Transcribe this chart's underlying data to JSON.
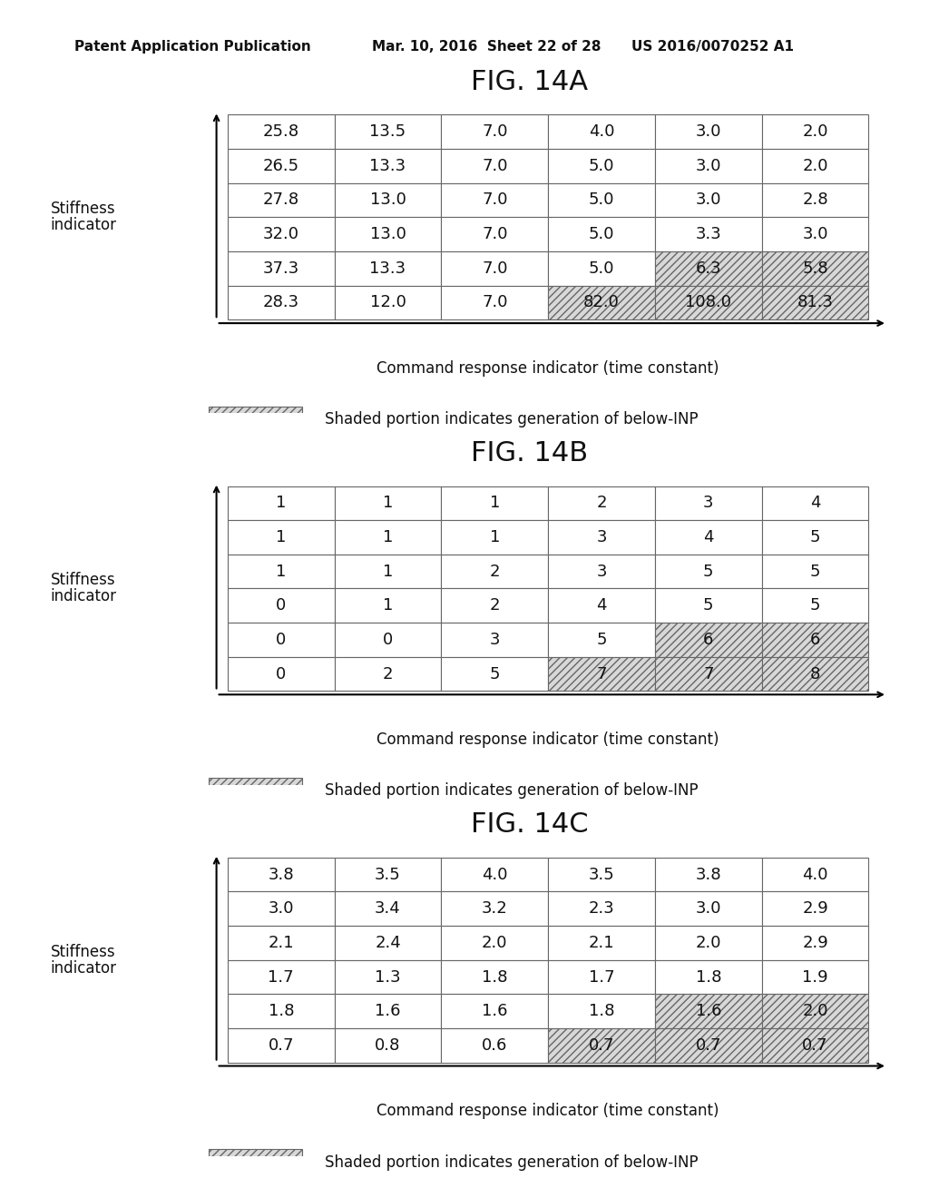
{
  "header_left": "Patent Application Publication",
  "header_mid": "Mar. 10, 2016  Sheet 22 of 28",
  "header_right": "US 2016/0070252 A1",
  "fig_titles": [
    "FIG. 14A",
    "FIG. 14B",
    "FIG. 14C"
  ],
  "xlabel": "Command response indicator (time constant)",
  "ylabel_line1": "Stiffness",
  "ylabel_line2": "indicator",
  "legend_text": "Shaded portion indicates generation of below-INP",
  "tableA": [
    [
      "25.8",
      "13.5",
      "7.0",
      "4.0",
      "3.0",
      "2.0"
    ],
    [
      "26.5",
      "13.3",
      "7.0",
      "5.0",
      "3.0",
      "2.0"
    ],
    [
      "27.8",
      "13.0",
      "7.0",
      "5.0",
      "3.0",
      "2.8"
    ],
    [
      "32.0",
      "13.0",
      "7.0",
      "5.0",
      "3.3",
      "3.0"
    ],
    [
      "37.3",
      "13.3",
      "7.0",
      "5.0",
      "6.3",
      "5.8"
    ],
    [
      "28.3",
      "12.0",
      "7.0",
      "82.0",
      "108.0",
      "81.3"
    ]
  ],
  "shadedA": [
    [
      false,
      false,
      false,
      false,
      false,
      false
    ],
    [
      false,
      false,
      false,
      false,
      false,
      false
    ],
    [
      false,
      false,
      false,
      false,
      false,
      false
    ],
    [
      false,
      false,
      false,
      false,
      false,
      false
    ],
    [
      false,
      false,
      false,
      false,
      true,
      true
    ],
    [
      false,
      false,
      false,
      true,
      true,
      true
    ]
  ],
  "tableB": [
    [
      "1",
      "1",
      "1",
      "2",
      "3",
      "4"
    ],
    [
      "1",
      "1",
      "1",
      "3",
      "4",
      "5"
    ],
    [
      "1",
      "1",
      "2",
      "3",
      "5",
      "5"
    ],
    [
      "0",
      "1",
      "2",
      "4",
      "5",
      "5"
    ],
    [
      "0",
      "0",
      "3",
      "5",
      "6",
      "6"
    ],
    [
      "0",
      "2",
      "5",
      "7",
      "7",
      "8"
    ]
  ],
  "shadedB": [
    [
      false,
      false,
      false,
      false,
      false,
      false
    ],
    [
      false,
      false,
      false,
      false,
      false,
      false
    ],
    [
      false,
      false,
      false,
      false,
      false,
      false
    ],
    [
      false,
      false,
      false,
      false,
      false,
      false
    ],
    [
      false,
      false,
      false,
      false,
      true,
      true
    ],
    [
      false,
      false,
      false,
      true,
      true,
      true
    ]
  ],
  "tableC": [
    [
      "3.8",
      "3.5",
      "4.0",
      "3.5",
      "3.8",
      "4.0"
    ],
    [
      "3.0",
      "3.4",
      "3.2",
      "2.3",
      "3.0",
      "2.9"
    ],
    [
      "2.1",
      "2.4",
      "2.0",
      "2.1",
      "2.0",
      "2.9"
    ],
    [
      "1.7",
      "1.3",
      "1.8",
      "1.7",
      "1.8",
      "1.9"
    ],
    [
      "1.8",
      "1.6",
      "1.6",
      "1.8",
      "1.6",
      "2.0"
    ],
    [
      "0.7",
      "0.8",
      "0.6",
      "0.7",
      "0.7",
      "0.7"
    ]
  ],
  "shadedC": [
    [
      false,
      false,
      false,
      false,
      false,
      false
    ],
    [
      false,
      false,
      false,
      false,
      false,
      false
    ],
    [
      false,
      false,
      false,
      false,
      false,
      false
    ],
    [
      false,
      false,
      false,
      false,
      false,
      false
    ],
    [
      false,
      false,
      false,
      false,
      true,
      true
    ],
    [
      false,
      false,
      false,
      true,
      true,
      true
    ]
  ],
  "bg_color": "#ffffff",
  "table_edge_color": "#666666",
  "cell_text_color": "#111111",
  "title_fontsize": 22,
  "header_fontsize": 11,
  "cell_fontsize": 13,
  "label_fontsize": 12,
  "legend_fontsize": 12
}
